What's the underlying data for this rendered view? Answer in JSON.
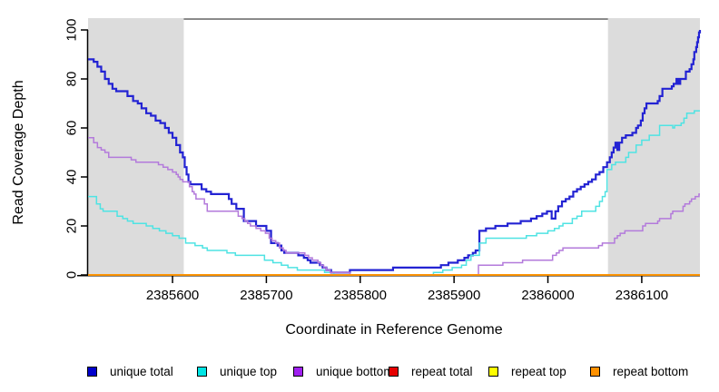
{
  "figure": {
    "xlabel": "Coordinate in Reference Genome",
    "ylabel": "Read Coverage Depth"
  },
  "colors": {
    "background": "#FFFFFF",
    "shaded_region": "#DCDCDC",
    "region_marker": "#8A8A8A",
    "axis": "#000000"
  },
  "legend": {
    "items": [
      {
        "label": "unique total",
        "swatch": "#0000CC"
      },
      {
        "label": "unique top",
        "swatch": "#00E5E5"
      },
      {
        "label": "unique bottom",
        "swatch": "#A020F0"
      },
      {
        "label": "repeat total",
        "swatch": "#E60000"
      },
      {
        "label": "repeat top",
        "swatch": "#FFFF00"
      },
      {
        "label": "repeat bottom",
        "swatch": "#FF9100"
      }
    ]
  },
  "chart_data": {
    "type": "line",
    "step": true,
    "title": "",
    "xlabel": "Coordinate in Reference Genome",
    "ylabel": "Read Coverage Depth",
    "xlim": [
      2385510,
      2386162
    ],
    "ylim": [
      0,
      100
    ],
    "x_ticks": [
      2385600,
      2385700,
      2385800,
      2385900,
      2386000,
      2386100
    ],
    "y_ticks": [
      0,
      20,
      40,
      60,
      80,
      100
    ],
    "grid": false,
    "legend_position": "bottom",
    "shaded_regions": [
      {
        "x0": 2385510,
        "x1": 2385612
      },
      {
        "x0": 2386064,
        "x1": 2386162
      }
    ],
    "region_marker": {
      "x0": 2385612,
      "x1": 2386064,
      "y": "top"
    },
    "series": [
      {
        "name": "unique total",
        "color": "#2323D3",
        "width": 2.2,
        "points": [
          [
            2385510,
            88
          ],
          [
            2385516,
            87
          ],
          [
            2385520,
            85
          ],
          [
            2385524,
            83
          ],
          [
            2385528,
            80
          ],
          [
            2385532,
            78
          ],
          [
            2385536,
            76
          ],
          [
            2385540,
            75
          ],
          [
            2385552,
            73
          ],
          [
            2385558,
            71
          ],
          [
            2385563,
            70
          ],
          [
            2385567,
            68
          ],
          [
            2385572,
            66
          ],
          [
            2385577,
            65
          ],
          [
            2385582,
            63
          ],
          [
            2385587,
            62
          ],
          [
            2385592,
            60
          ],
          [
            2385596,
            58
          ],
          [
            2385600,
            56
          ],
          [
            2385604,
            53
          ],
          [
            2385608,
            50
          ],
          [
            2385611,
            48
          ],
          [
            2385613,
            44
          ],
          [
            2385615,
            41
          ],
          [
            2385617,
            38
          ],
          [
            2385619,
            37
          ],
          [
            2385631,
            35
          ],
          [
            2385636,
            34
          ],
          [
            2385641,
            33
          ],
          [
            2385660,
            31
          ],
          [
            2385663,
            29
          ],
          [
            2385668,
            27
          ],
          [
            2385676,
            22
          ],
          [
            2385689,
            20
          ],
          [
            2385700,
            18
          ],
          [
            2385705,
            13
          ],
          [
            2385712,
            12
          ],
          [
            2385716,
            10
          ],
          [
            2385719,
            9
          ],
          [
            2385734,
            8
          ],
          [
            2385740,
            7
          ],
          [
            2385744,
            6
          ],
          [
            2385747,
            5
          ],
          [
            2385757,
            4
          ],
          [
            2385760,
            3
          ],
          [
            2385764,
            2
          ],
          [
            2385769,
            1
          ],
          [
            2385789,
            2
          ],
          [
            2385835,
            3
          ],
          [
            2385886,
            4
          ],
          [
            2385894,
            5
          ],
          [
            2385904,
            6
          ],
          [
            2385911,
            7
          ],
          [
            2385915,
            8
          ],
          [
            2385920,
            9
          ],
          [
            2385923,
            10
          ],
          [
            2385927,
            18
          ],
          [
            2385934,
            19
          ],
          [
            2385944,
            20
          ],
          [
            2385957,
            21
          ],
          [
            2385971,
            22
          ],
          [
            2385982,
            23
          ],
          [
            2385988,
            24
          ],
          [
            2385994,
            25
          ],
          [
            2385999,
            26
          ],
          [
            2386004,
            23
          ],
          [
            2386008,
            26
          ],
          [
            2386011,
            28
          ],
          [
            2386015,
            30
          ],
          [
            2386019,
            31
          ],
          [
            2386023,
            32
          ],
          [
            2386027,
            34
          ],
          [
            2386031,
            35
          ],
          [
            2386035,
            36
          ],
          [
            2386039,
            37
          ],
          [
            2386043,
            38
          ],
          [
            2386047,
            39
          ],
          [
            2386051,
            41
          ],
          [
            2386055,
            42
          ],
          [
            2386059,
            44
          ],
          [
            2386063,
            46
          ],
          [
            2386066,
            48
          ],
          [
            2386068,
            50
          ],
          [
            2386070,
            52
          ],
          [
            2386072,
            54
          ],
          [
            2386074,
            51
          ],
          [
            2386076,
            54
          ],
          [
            2386079,
            56
          ],
          [
            2386083,
            57
          ],
          [
            2386090,
            58
          ],
          [
            2386094,
            60
          ],
          [
            2386096,
            61
          ],
          [
            2386099,
            63
          ],
          [
            2386101,
            66
          ],
          [
            2386103,
            68
          ],
          [
            2386105,
            70
          ],
          [
            2386117,
            71
          ],
          [
            2386119,
            73
          ],
          [
            2386122,
            76
          ],
          [
            2386132,
            77
          ],
          [
            2386134,
            78
          ],
          [
            2386137,
            80
          ],
          [
            2386139,
            78
          ],
          [
            2386141,
            80
          ],
          [
            2386147,
            83
          ],
          [
            2386151,
            84
          ],
          [
            2386153,
            86
          ],
          [
            2386155,
            88
          ],
          [
            2386156,
            91
          ],
          [
            2386158,
            93
          ],
          [
            2386159,
            95
          ],
          [
            2386160,
            97
          ],
          [
            2386161,
            99
          ],
          [
            2386162,
            100
          ]
        ]
      },
      {
        "name": "unique top",
        "color": "#4FE3E3",
        "width": 1.5,
        "points": [
          [
            2385510,
            32
          ],
          [
            2385519,
            29
          ],
          [
            2385523,
            27
          ],
          [
            2385526,
            26
          ],
          [
            2385541,
            24
          ],
          [
            2385547,
            23
          ],
          [
            2385552,
            22
          ],
          [
            2385558,
            21
          ],
          [
            2385572,
            20
          ],
          [
            2385579,
            19
          ],
          [
            2385586,
            18
          ],
          [
            2385593,
            17
          ],
          [
            2385600,
            16
          ],
          [
            2385607,
            15
          ],
          [
            2385614,
            13
          ],
          [
            2385624,
            12
          ],
          [
            2385632,
            11
          ],
          [
            2385637,
            10
          ],
          [
            2385658,
            9
          ],
          [
            2385667,
            8
          ],
          [
            2385698,
            6
          ],
          [
            2385707,
            5
          ],
          [
            2385716,
            4
          ],
          [
            2385723,
            3
          ],
          [
            2385733,
            2
          ],
          [
            2385762,
            1
          ],
          [
            2385772,
            0
          ],
          [
            2385878,
            1
          ],
          [
            2385888,
            2
          ],
          [
            2385898,
            3
          ],
          [
            2385908,
            4
          ],
          [
            2385913,
            6
          ],
          [
            2385918,
            8
          ],
          [
            2385927,
            13
          ],
          [
            2385934,
            15
          ],
          [
            2385977,
            16
          ],
          [
            2385988,
            17
          ],
          [
            2386000,
            18
          ],
          [
            2386007,
            19
          ],
          [
            2386012,
            20
          ],
          [
            2386016,
            21
          ],
          [
            2386026,
            23
          ],
          [
            2386031,
            24
          ],
          [
            2386036,
            26
          ],
          [
            2386051,
            28
          ],
          [
            2386055,
            30
          ],
          [
            2386058,
            32
          ],
          [
            2386061,
            34
          ],
          [
            2386063,
            43
          ],
          [
            2386068,
            45
          ],
          [
            2386072,
            46
          ],
          [
            2386083,
            48
          ],
          [
            2386086,
            50
          ],
          [
            2386094,
            53
          ],
          [
            2386100,
            55
          ],
          [
            2386108,
            57
          ],
          [
            2386119,
            61
          ],
          [
            2386133,
            60
          ],
          [
            2386135,
            61
          ],
          [
            2386142,
            62
          ],
          [
            2386145,
            64
          ],
          [
            2386148,
            66
          ],
          [
            2386156,
            67
          ]
        ]
      },
      {
        "name": "unique bottom",
        "color": "#B37ADB",
        "width": 1.5,
        "points": [
          [
            2385510,
            56
          ],
          [
            2385516,
            54
          ],
          [
            2385520,
            52
          ],
          [
            2385524,
            51
          ],
          [
            2385528,
            50
          ],
          [
            2385532,
            48
          ],
          [
            2385556,
            47
          ],
          [
            2385561,
            46
          ],
          [
            2385585,
            45
          ],
          [
            2385590,
            44
          ],
          [
            2385595,
            43
          ],
          [
            2385600,
            42
          ],
          [
            2385604,
            41
          ],
          [
            2385606,
            40
          ],
          [
            2385608,
            39
          ],
          [
            2385611,
            38
          ],
          [
            2385618,
            36
          ],
          [
            2385621,
            34
          ],
          [
            2385623,
            33
          ],
          [
            2385625,
            31
          ],
          [
            2385634,
            29
          ],
          [
            2385637,
            26
          ],
          [
            2385670,
            24
          ],
          [
            2385674,
            23
          ],
          [
            2385677,
            22
          ],
          [
            2385680,
            21
          ],
          [
            2385683,
            20
          ],
          [
            2385689,
            19
          ],
          [
            2385694,
            18
          ],
          [
            2385699,
            17
          ],
          [
            2385703,
            15
          ],
          [
            2385706,
            14
          ],
          [
            2385710,
            13
          ],
          [
            2385714,
            11
          ],
          [
            2385718,
            10
          ],
          [
            2385721,
            9
          ],
          [
            2385741,
            8
          ],
          [
            2385745,
            7
          ],
          [
            2385749,
            6
          ],
          [
            2385755,
            5
          ],
          [
            2385758,
            4
          ],
          [
            2385761,
            3
          ],
          [
            2385764,
            2
          ],
          [
            2385768,
            1
          ],
          [
            2385789,
            0
          ],
          [
            2385926,
            4
          ],
          [
            2385952,
            5
          ],
          [
            2385973,
            6
          ],
          [
            2386005,
            8
          ],
          [
            2386009,
            9
          ],
          [
            2386012,
            10
          ],
          [
            2386016,
            11
          ],
          [
            2386054,
            12
          ],
          [
            2386058,
            13
          ],
          [
            2386071,
            15
          ],
          [
            2386074,
            16
          ],
          [
            2386077,
            17
          ],
          [
            2386082,
            18
          ],
          [
            2386101,
            20
          ],
          [
            2386104,
            21
          ],
          [
            2386117,
            22
          ],
          [
            2386119,
            23
          ],
          [
            2386131,
            25
          ],
          [
            2386133,
            26
          ],
          [
            2386144,
            28
          ],
          [
            2386146,
            29
          ],
          [
            2386151,
            30
          ],
          [
            2386153,
            31
          ],
          [
            2386157,
            32
          ],
          [
            2386161,
            33
          ]
        ]
      },
      {
        "name": "repeat total",
        "color": "#E60000",
        "width": 1.5,
        "points": [
          [
            2385510,
            0
          ],
          [
            2386162,
            0
          ]
        ]
      },
      {
        "name": "repeat top",
        "color": "#FFFF00",
        "width": 1.5,
        "points": [
          [
            2385510,
            0
          ],
          [
            2386162,
            0
          ]
        ]
      },
      {
        "name": "repeat bottom",
        "color": "#FF9100",
        "width": 1.8,
        "points": [
          [
            2385510,
            0
          ],
          [
            2386162,
            0
          ]
        ]
      }
    ]
  }
}
